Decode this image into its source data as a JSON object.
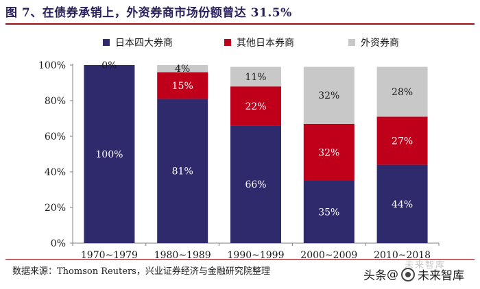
{
  "figure": {
    "title": "图 7、在债券承销上，外资券商市场份额曾达 31.5%",
    "source": "数据来源：Thomson Reuters，兴业证券经济与金融研究院整理",
    "watermark_prefix": "头条",
    "watermark_at": "@",
    "watermark_name": "未来智库",
    "watermark_faint": "未来智库"
  },
  "chart_data": {
    "type": "bar",
    "stacked": true,
    "categories": [
      "1970~1979",
      "1980~1989",
      "1990~1999",
      "2000~2009",
      "2010~2018"
    ],
    "series": [
      {
        "name": "日本四大券商",
        "color": "#2e2a6b",
        "label_color": "#ffffff",
        "values": [
          100,
          81,
          66,
          35,
          44
        ],
        "labels": [
          "100%",
          "81%",
          "66%",
          "35%",
          "44%"
        ]
      },
      {
        "name": "其他日本券商",
        "color": "#c0001a",
        "label_color": "#ffffff",
        "values": [
          0,
          15,
          22,
          32,
          27
        ],
        "labels": [
          "",
          "15%",
          "22%",
          "32%",
          "27%"
        ]
      },
      {
        "name": "外资券商",
        "color": "#c8c8c8",
        "label_color": "#1a1a1a",
        "values": [
          0,
          4,
          11,
          32,
          28
        ],
        "labels": [
          "0%",
          "4%",
          "11%",
          "32%",
          "28%"
        ]
      }
    ],
    "ylim": [
      0,
      100
    ],
    "yticks": [
      0,
      20,
      40,
      60,
      80,
      100
    ],
    "ytick_labels": [
      "0%",
      "20%",
      "40%",
      "60%",
      "80%",
      "100%"
    ],
    "legend_position": "top",
    "grid": false
  }
}
